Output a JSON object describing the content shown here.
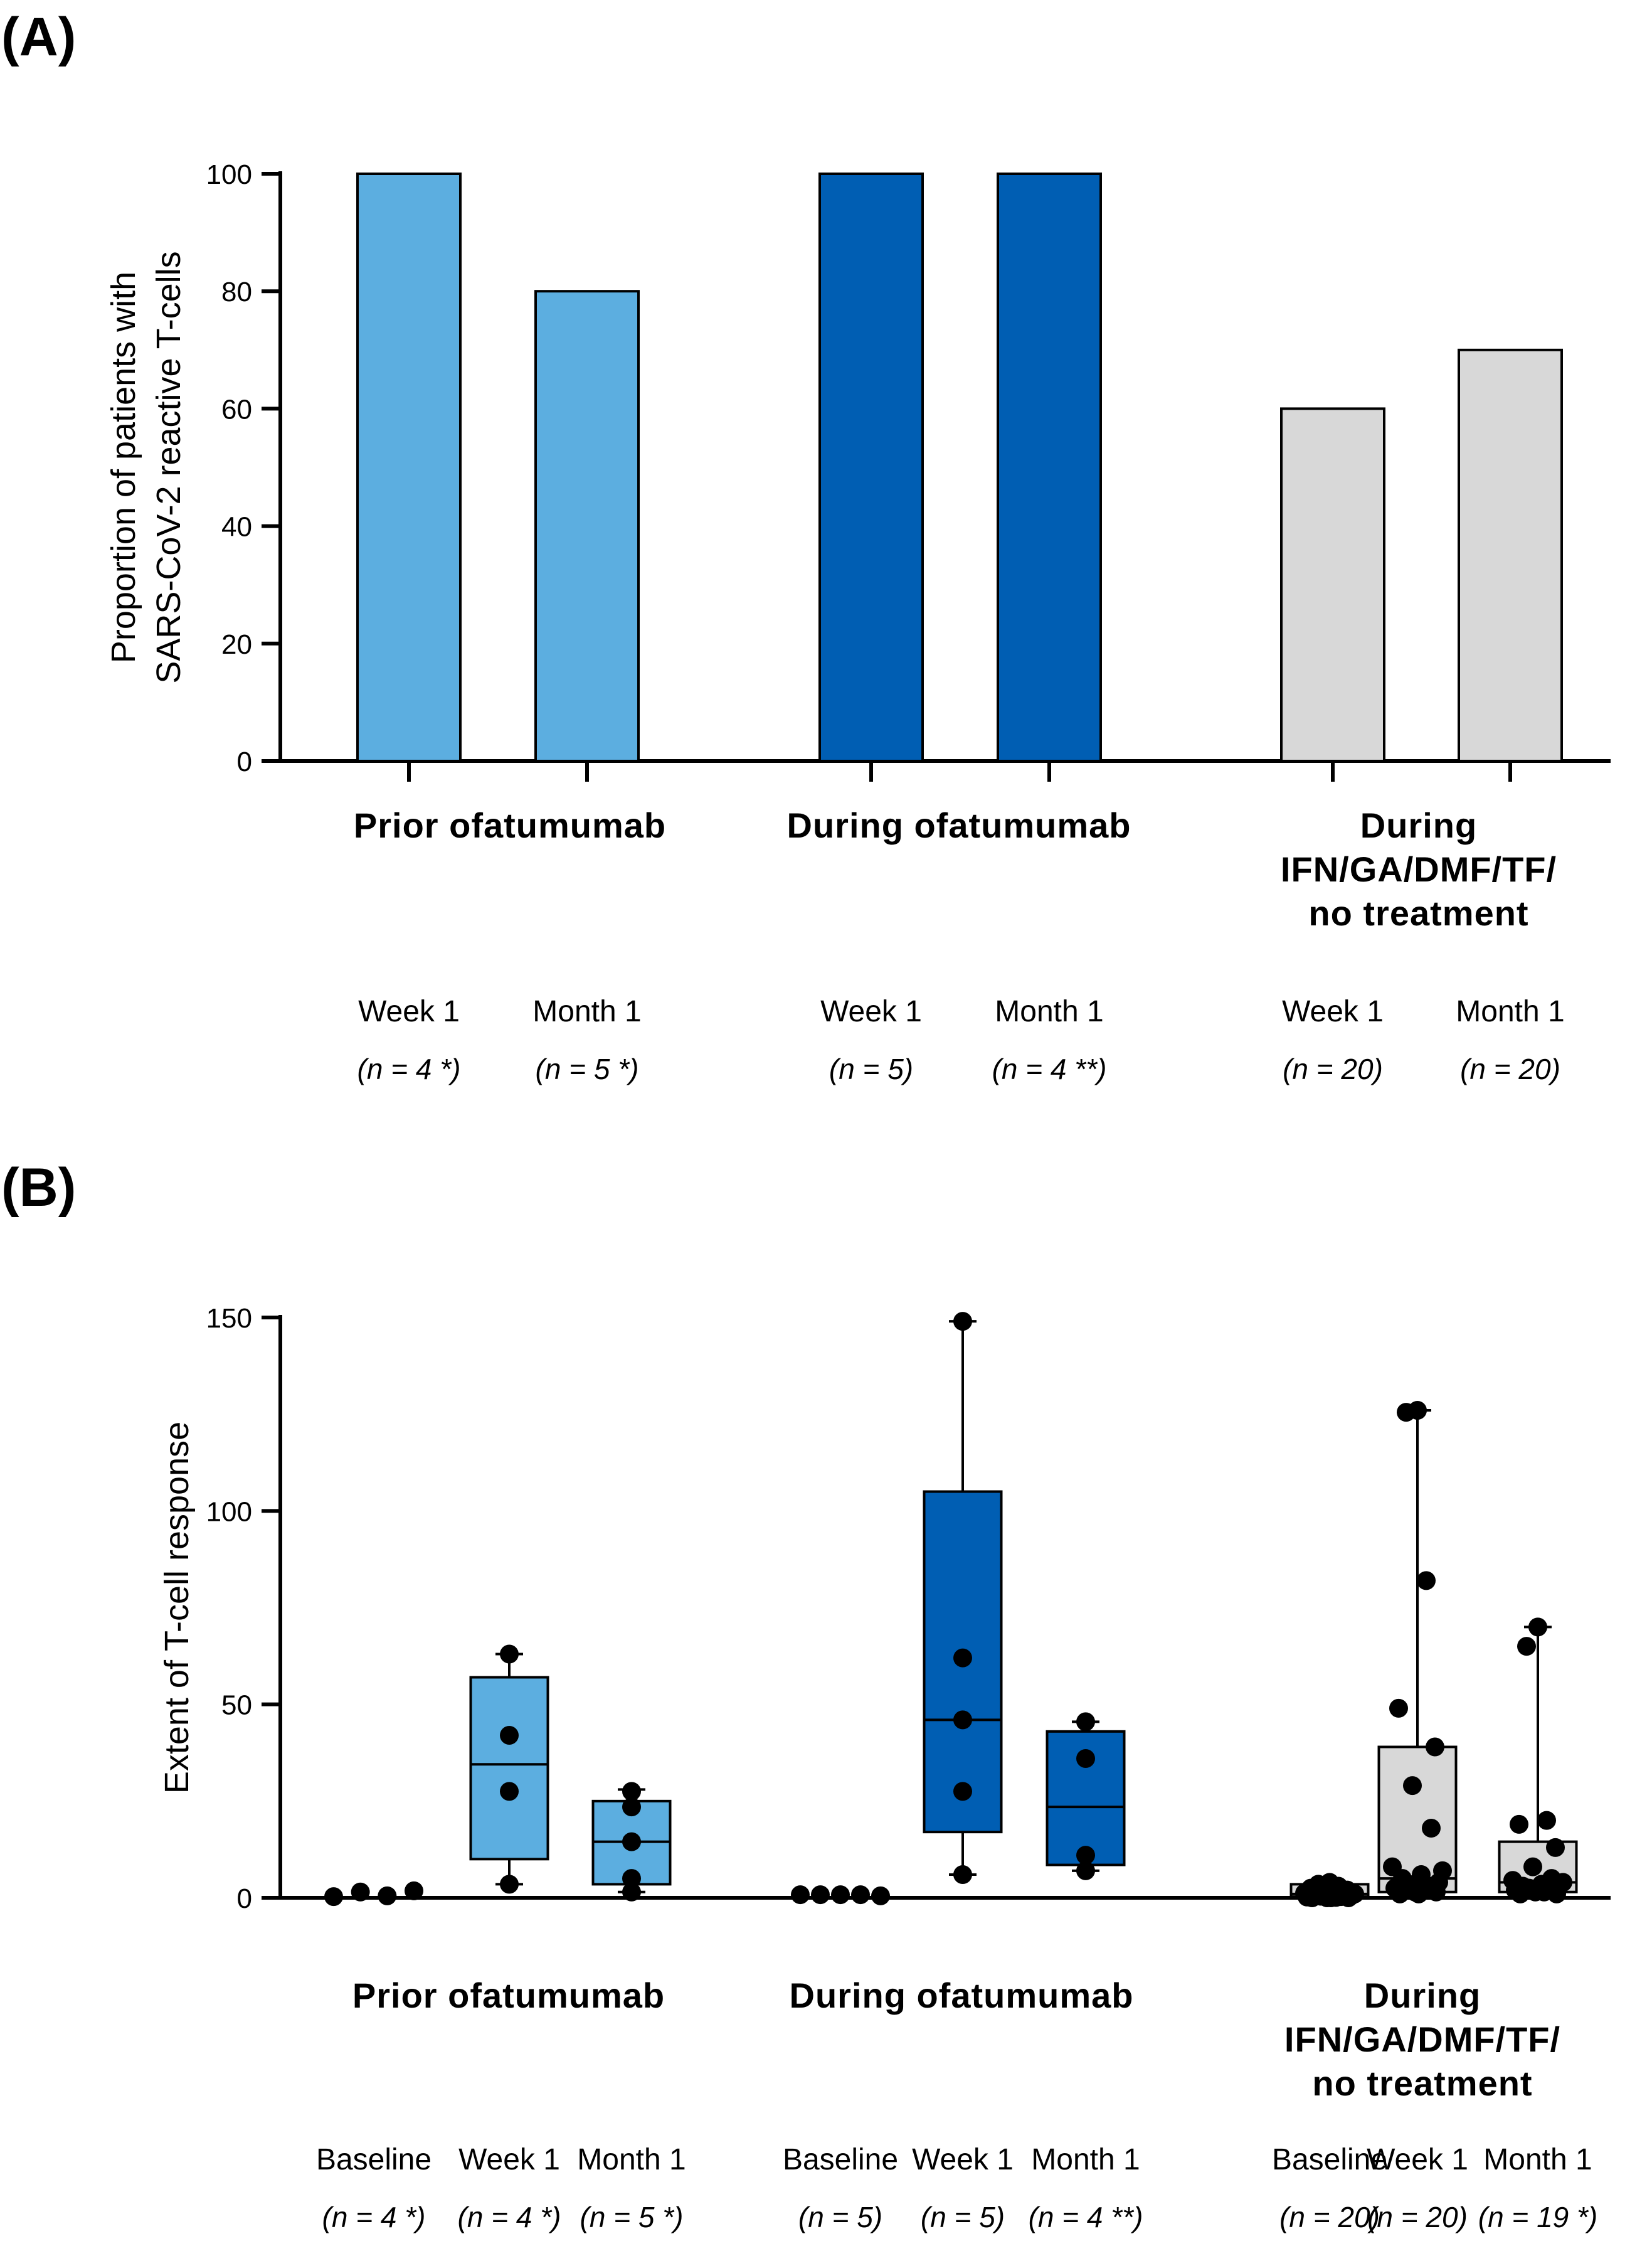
{
  "colors": {
    "light_blue": "#5caee0",
    "dark_blue": "#005eb3",
    "gray": "#d8d8d8",
    "stroke": "#000000"
  },
  "chart_data": [
    {
      "id": "A",
      "panel_label": "(A)",
      "type": "bar",
      "ylabel": [
        "Proportion of patients with",
        "SARS-CoV-2 reactive T-cells"
      ],
      "ylim": [
        0,
        100
      ],
      "yticks": [
        "0",
        "20",
        "40",
        "60",
        "80",
        "100"
      ],
      "groups": [
        {
          "name": [
            "Prior ofatumumab"
          ],
          "color": "light_blue",
          "bars": [
            {
              "label": "Week 1",
              "n": "(n = 4 *)",
              "value": 100
            },
            {
              "label": "Month 1",
              "n": "(n = 5 *)",
              "value": 80
            }
          ]
        },
        {
          "name": [
            "During ofatumumab"
          ],
          "color": "dark_blue",
          "bars": [
            {
              "label": "Week 1",
              "n": "(n = 5)",
              "value": 100
            },
            {
              "label": "Month 1",
              "n": "(n = 4 **)",
              "value": 100
            }
          ]
        },
        {
          "name": [
            "During",
            "IFN/GA/DMF/TF/",
            "no treatment"
          ],
          "color": "gray",
          "bars": [
            {
              "label": "Week 1",
              "n": "(n = 20)",
              "value": 60
            },
            {
              "label": "Month 1",
              "n": "(n = 20)",
              "value": 70
            }
          ]
        }
      ]
    },
    {
      "id": "B",
      "panel_label": "(B)",
      "type": "box",
      "ylabel": [
        "Extent of  T-cell response"
      ],
      "ylim": [
        0,
        150
      ],
      "yticks": [
        "0",
        "50",
        "100",
        "150"
      ],
      "groups": [
        {
          "name": [
            "Prior ofatumumab"
          ],
          "color": "light_blue",
          "boxes": [
            {
              "label": "Baseline",
              "n": "(n = 4 *)",
              "points": [
                0.3,
                1.5,
                0.5,
                1.8
              ]
            },
            {
              "label": "Week 1",
              "n": "(n = 4 *)",
              "min": 3.5,
              "q1": 10,
              "median": 34.5,
              "q3": 57,
              "max": 63,
              "points": [
                63,
                42,
                27.5,
                3.5
              ]
            },
            {
              "label": "Month 1",
              "n": "(n = 5 *)",
              "min": 1.5,
              "q1": 3.5,
              "median": 14.5,
              "q3": 25,
              "max": 28,
              "points": [
                27.5,
                23.5,
                14.5,
                5,
                1.5
              ]
            }
          ]
        },
        {
          "name": [
            "During ofatumumab"
          ],
          "color": "dark_blue",
          "boxes": [
            {
              "label": "Baseline",
              "n": "(n = 5)",
              "points": [
                0.8,
                0.8,
                0.8,
                0.8,
                0.5
              ]
            },
            {
              "label": "Week 1",
              "n": "(n = 5)",
              "min": 6,
              "q1": 17,
              "median": 46,
              "q3": 105,
              "max": 149,
              "points": [
                149,
                62,
                46,
                27.5,
                6
              ]
            },
            {
              "label": "Month 1",
              "n": "(n = 4 **)",
              "min": 7,
              "q1": 8.5,
              "median": 23.5,
              "q3": 43,
              "max": 45.5,
              "points": [
                45.5,
                36,
                11,
                7
              ]
            }
          ]
        },
        {
          "name": [
            "During",
            "IFN/GA/DMF/TF/",
            "no treatment"
          ],
          "color": "gray",
          "boxes": [
            {
              "label": "Baseline",
              "n": "(n = 20)",
              "min": 0,
              "q1": 0.3,
              "median": 1,
              "q3": 3.5,
              "max": 4,
              "points": [
                4,
                3.5,
                3,
                2.5,
                2,
                1.8,
                1.5,
                1.2,
                1,
                0.8,
                0.6,
                0.5,
                0.4,
                0.3,
                0.2,
                0.1,
                0,
                0,
                0,
                0
              ]
            },
            {
              "label": "Week 1",
              "n": "(n = 20)",
              "min": 1,
              "q1": 1.5,
              "median": 5,
              "q3": 39,
              "max": 126,
              "points": [
                126,
                125.5,
                82,
                49,
                39,
                29,
                18,
                8,
                7,
                6,
                5,
                4,
                3.5,
                3,
                2.5,
                2,
                1.5,
                1.5,
                1,
                1
              ]
            },
            {
              "label": "Month 1",
              "n": "(n = 19 *)",
              "min": 1,
              "q1": 1.5,
              "median": 4,
              "q3": 14.5,
              "max": 70,
              "points": [
                70,
                65,
                20,
                19,
                13,
                8,
                5,
                4.5,
                4,
                3.5,
                3,
                3,
                2.5,
                2,
                2,
                1.5,
                1.5,
                1,
                1
              ]
            }
          ]
        }
      ]
    }
  ]
}
